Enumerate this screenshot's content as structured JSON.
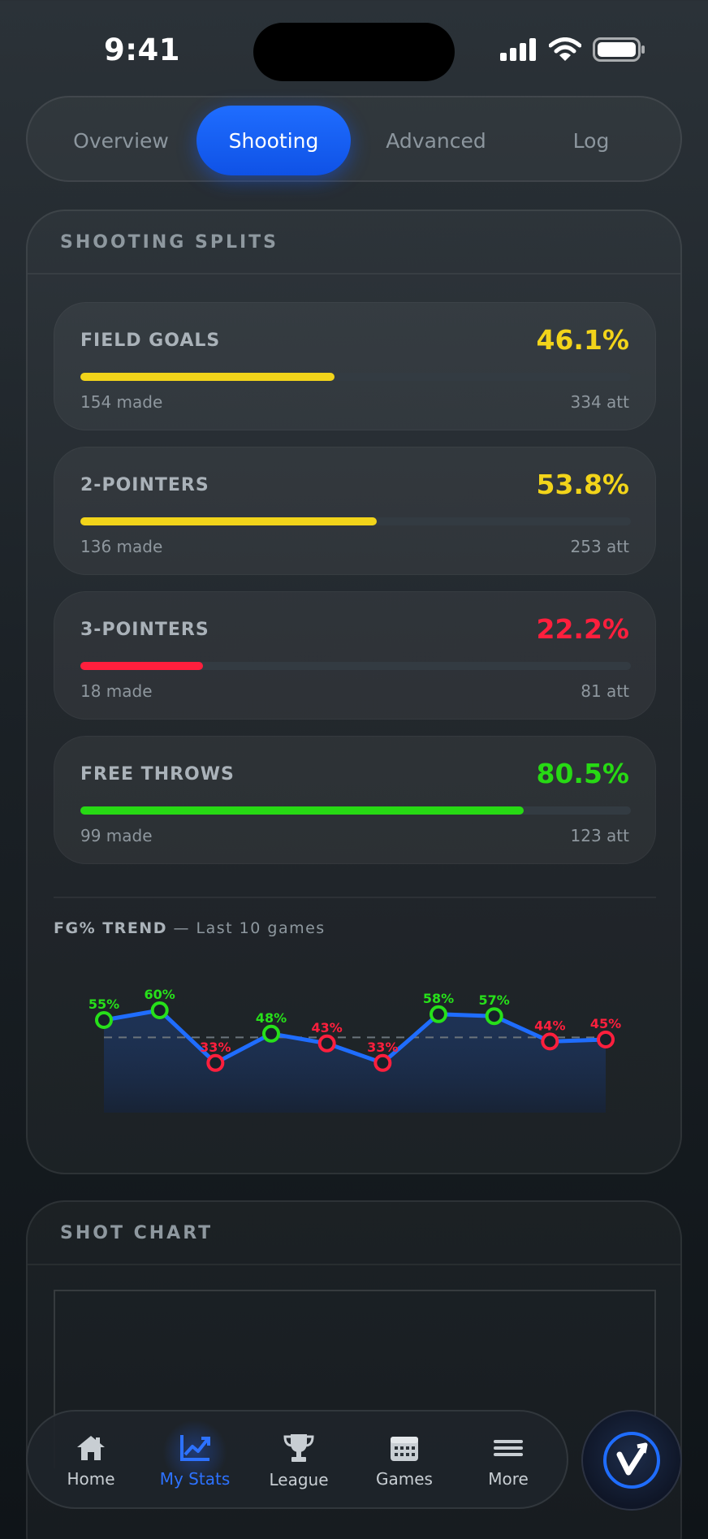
{
  "status": {
    "time": "9:41"
  },
  "tabs": [
    {
      "label": "Overview",
      "active": false
    },
    {
      "label": "Shooting",
      "active": true
    },
    {
      "label": "Advanced",
      "active": false
    },
    {
      "label": "Log",
      "active": false
    }
  ],
  "shooting_splits": {
    "title": "SHOOTING SPLITS",
    "items": [
      {
        "label": "FIELD GOALS",
        "pct": "46.1%",
        "fill": 0.461,
        "made": "154 made",
        "att": "334 att",
        "color": "#f2d41a"
      },
      {
        "label": "2-POINTERS",
        "pct": "53.8%",
        "fill": 0.538,
        "made": "136 made",
        "att": "253 att",
        "color": "#f2d41a"
      },
      {
        "label": "3-POINTERS",
        "pct": "22.2%",
        "fill": 0.222,
        "made": "18 made",
        "att": "81 att",
        "color": "#ff1f3d"
      },
      {
        "label": "FREE THROWS",
        "pct": "80.5%",
        "fill": 0.805,
        "made": "99 made",
        "att": "123 att",
        "color": "#27d914"
      }
    ]
  },
  "trend": {
    "title": "FG% TREND",
    "subtitle": " — Last 10 games"
  },
  "chart_data": {
    "type": "line",
    "x": [
      1,
      2,
      3,
      4,
      5,
      6,
      7,
      8,
      9,
      10
    ],
    "values": [
      55,
      60,
      33,
      48,
      43,
      33,
      58,
      57,
      44,
      45
    ],
    "labels": [
      "55%",
      "60%",
      "33%",
      "48%",
      "43%",
      "33%",
      "58%",
      "57%",
      "44%",
      "45%"
    ],
    "average": 46.1,
    "ylim": [
      20,
      70
    ],
    "colors": {
      "good": "#27e01a",
      "bad": "#ff1f3d",
      "line": "#1f6dff"
    }
  },
  "shot_chart": {
    "title": "SHOT CHART"
  },
  "nav": [
    {
      "label": "Home",
      "icon": "home-icon",
      "active": false
    },
    {
      "label": "My Stats",
      "icon": "stats-icon",
      "active": true
    },
    {
      "label": "League",
      "icon": "trophy-icon",
      "active": false
    },
    {
      "label": "Games",
      "icon": "calendar-icon",
      "active": false
    },
    {
      "label": "More",
      "icon": "menu-icon",
      "active": false
    }
  ]
}
